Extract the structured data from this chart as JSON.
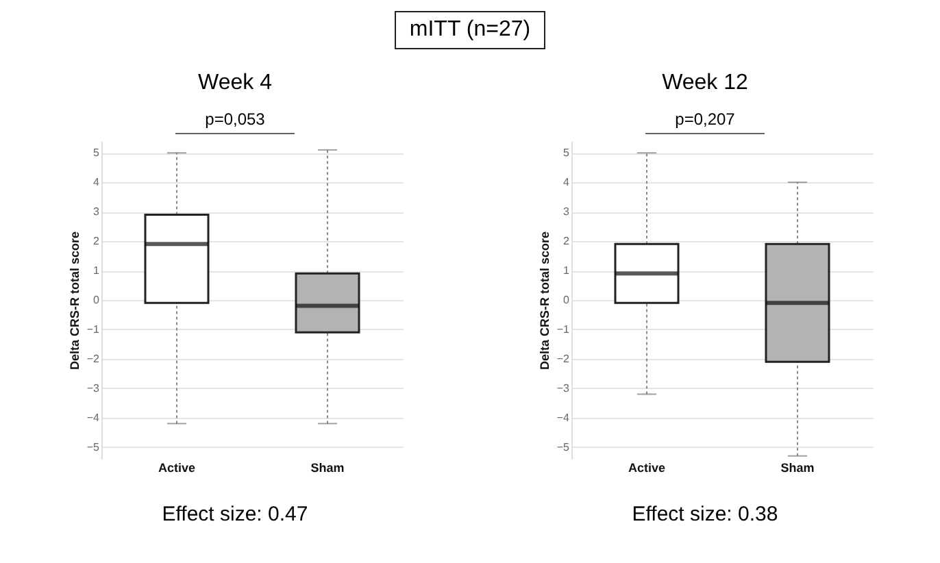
{
  "chart_data": [
    {
      "type": "other",
      "title": "mITT (n=27)"
    },
    {
      "type": "box",
      "title": "Week 4",
      "ylabel": "Delta CRS-R total score",
      "categories": [
        "Active",
        "Sham"
      ],
      "colors": [
        "#ffffff",
        "#b3b3b3"
      ],
      "boxes": [
        {
          "low": -4.2,
          "q1": -0.1,
          "median": 1.9,
          "q3": 2.9,
          "high": 5.0
        },
        {
          "low": -4.2,
          "q1": -1.1,
          "median": -0.2,
          "q3": 0.9,
          "high": 5.1
        }
      ],
      "ylim": [
        -5.4,
        5.4
      ],
      "yticks": [
        -5,
        -4,
        -3,
        -2,
        -1,
        0,
        1,
        2,
        3,
        4,
        5
      ],
      "grid": "y",
      "annotations": [
        "p=0,053",
        "Effect size: 0.47"
      ]
    },
    {
      "type": "box",
      "title": "Week 12",
      "ylabel": "Delta CRS-R total score",
      "categories": [
        "Active",
        "Sham"
      ],
      "colors": [
        "#ffffff",
        "#b3b3b3"
      ],
      "boxes": [
        {
          "low": -3.2,
          "q1": -0.1,
          "median": 0.9,
          "q3": 1.9,
          "high": 5.0
        },
        {
          "low": -5.3,
          "q1": -2.1,
          "median": -0.1,
          "q3": 1.9,
          "high": 4.0
        }
      ],
      "ylim": [
        -5.4,
        5.4
      ],
      "yticks": [
        -5,
        -4,
        -3,
        -2,
        -1,
        0,
        1,
        2,
        3,
        4,
        5
      ],
      "grid": "y",
      "annotations": [
        "p=0,207",
        "Effect size: 0.38"
      ]
    }
  ]
}
